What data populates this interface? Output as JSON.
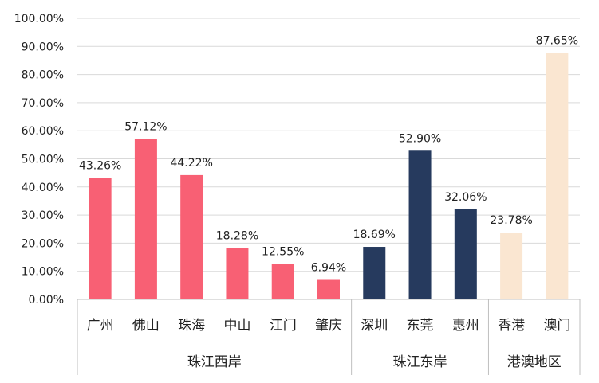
{
  "chart_data": {
    "type": "bar",
    "categories": [
      "广州",
      "佛山",
      "珠海",
      "中山",
      "江门",
      "肇庆",
      "深圳",
      "东莞",
      "惠州",
      "香港",
      "澳门"
    ],
    "values": [
      43.26,
      57.12,
      44.22,
      18.28,
      12.55,
      6.94,
      18.69,
      52.9,
      32.06,
      23.78,
      87.65
    ],
    "value_labels": [
      "43.26%",
      "57.12%",
      "44.22%",
      "18.28%",
      "12.55%",
      "6.94%",
      "18.69%",
      "52.90%",
      "32.06%",
      "23.78%",
      "87.65%"
    ],
    "groups": [
      {
        "name": "珠江西岸",
        "count": 6,
        "color": "#F86074"
      },
      {
        "name": "珠江东岸",
        "count": 3,
        "color": "#263A5E"
      },
      {
        "name": "港澳地区",
        "count": 2,
        "color": "#FAE6D1"
      }
    ],
    "ylim": [
      0,
      100
    ],
    "yticks": [
      0,
      10,
      20,
      30,
      40,
      50,
      60,
      70,
      80,
      90,
      100
    ],
    "ytick_labels": [
      "0.00%",
      "10.00%",
      "20.00%",
      "30.00%",
      "40.00%",
      "50.00%",
      "60.00%",
      "70.00%",
      "80.00%",
      "90.00%",
      "100.00%"
    ],
    "grid": true,
    "title": "",
    "xlabel": "",
    "ylabel": ""
  }
}
